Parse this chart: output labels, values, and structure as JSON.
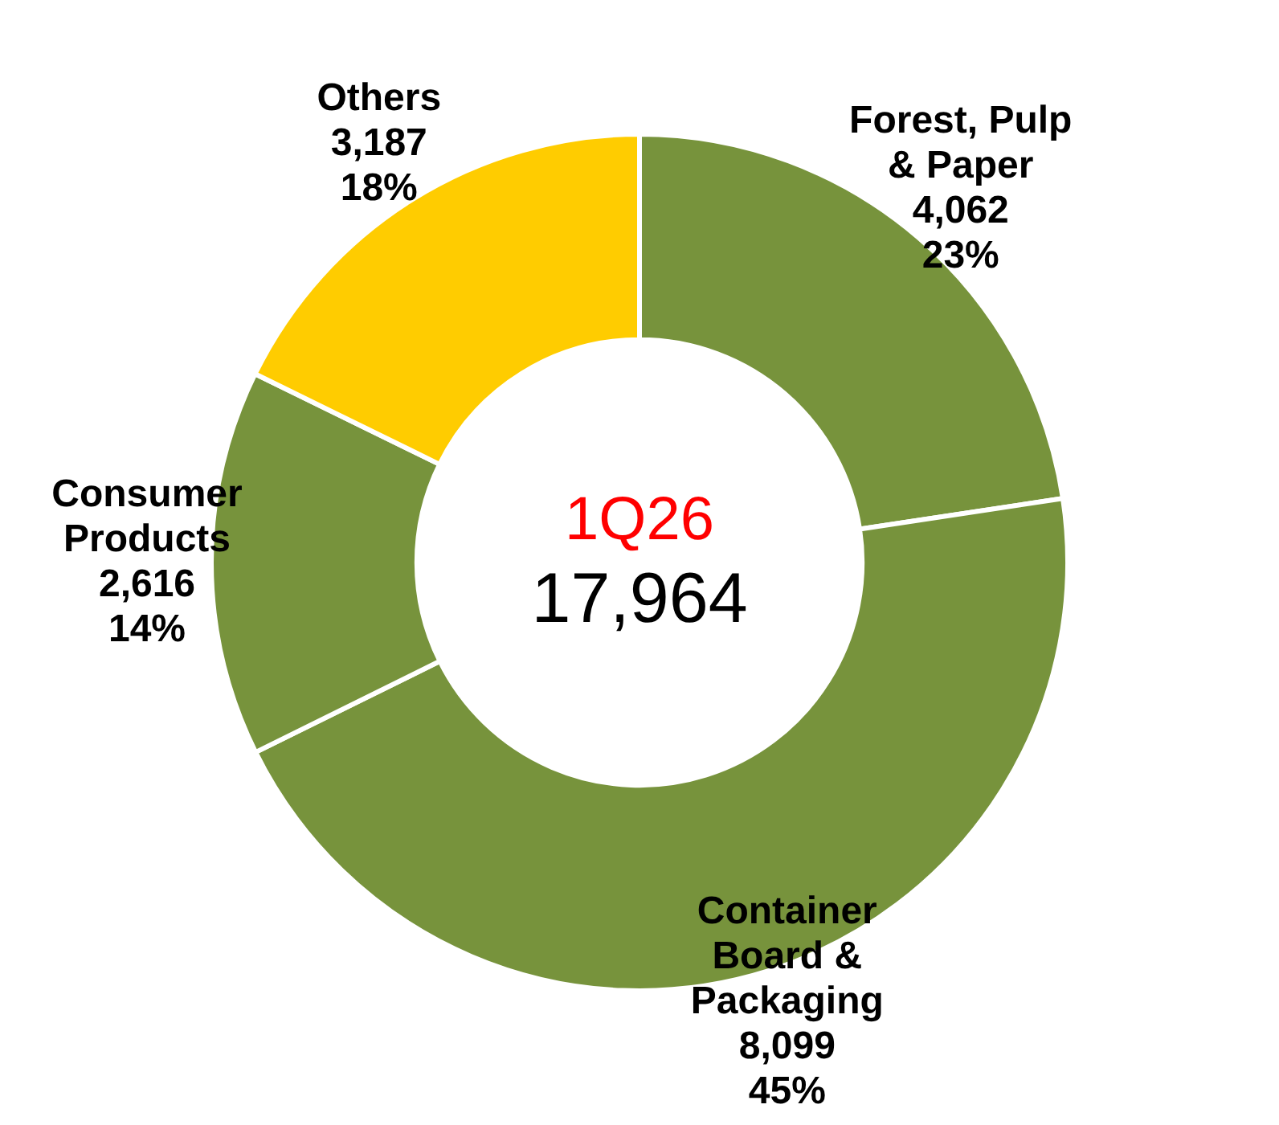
{
  "chart_data": {
    "type": "donut",
    "categories": [
      "Forest, Pulp & Paper",
      "Container Board & Packaging",
      "Consumer Products",
      "Others"
    ],
    "values": [
      4062,
      8099,
      2616,
      3187
    ],
    "colors": [
      "#77933c",
      "#77933c",
      "#77933c",
      "#ffcc00"
    ],
    "value_labels": [
      "4,062\n23%",
      "8,099\n45%",
      "2,616\n14%",
      "3,187\n18%"
    ],
    "annotations": [
      "1Q26",
      "17,964"
    ],
    "legend": false
  }
}
